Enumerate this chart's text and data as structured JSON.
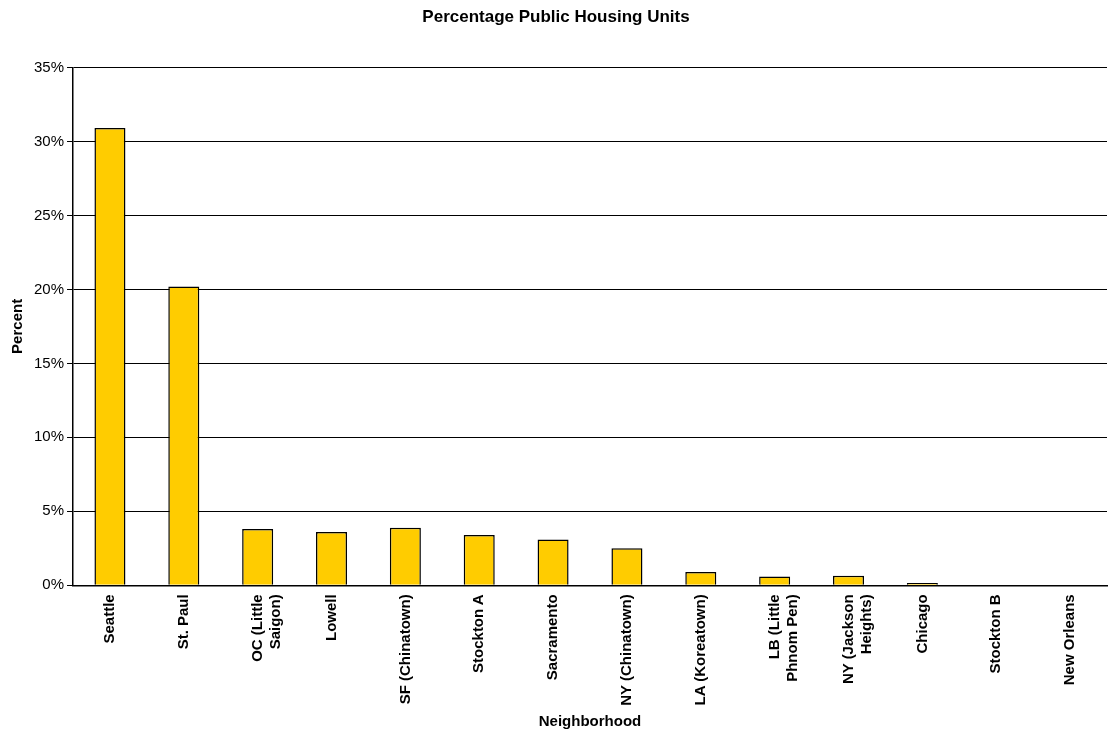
{
  "chart_data": {
    "type": "bar",
    "title": "Percentage Public Housing Units",
    "xlabel": "Neighborhood",
    "ylabel": "Percent",
    "categories": [
      "Seattle",
      "St. Paul",
      "OC (Little Saigon)",
      "Lowell",
      "SF (Chinatown)",
      "Stockton A",
      "Sacramento",
      "NY (Chinatown)",
      "LA (Koreatown)",
      "LB (Little Phnom Pen)",
      "NY (Jackson Heights)",
      "Chicago",
      "Stockton B",
      "New Orleans"
    ],
    "values": [
      30.9,
      20.2,
      3.8,
      3.6,
      3.9,
      3.4,
      3.1,
      2.5,
      0.9,
      0.6,
      0.65,
      0.15,
      0,
      0
    ],
    "color": "#ffcc00",
    "ylim": [
      0,
      35
    ],
    "yticks": [
      {
        "value": 0,
        "label": "0%"
      },
      {
        "value": 5,
        "label": "5%"
      },
      {
        "value": 10,
        "label": "10%"
      },
      {
        "value": 15,
        "label": "15%"
      },
      {
        "value": 20,
        "label": "20%"
      },
      {
        "value": 25,
        "label": "25%"
      },
      {
        "value": 30,
        "label": "30%"
      },
      {
        "value": 35,
        "label": "35%"
      }
    ],
    "grid": "y"
  }
}
